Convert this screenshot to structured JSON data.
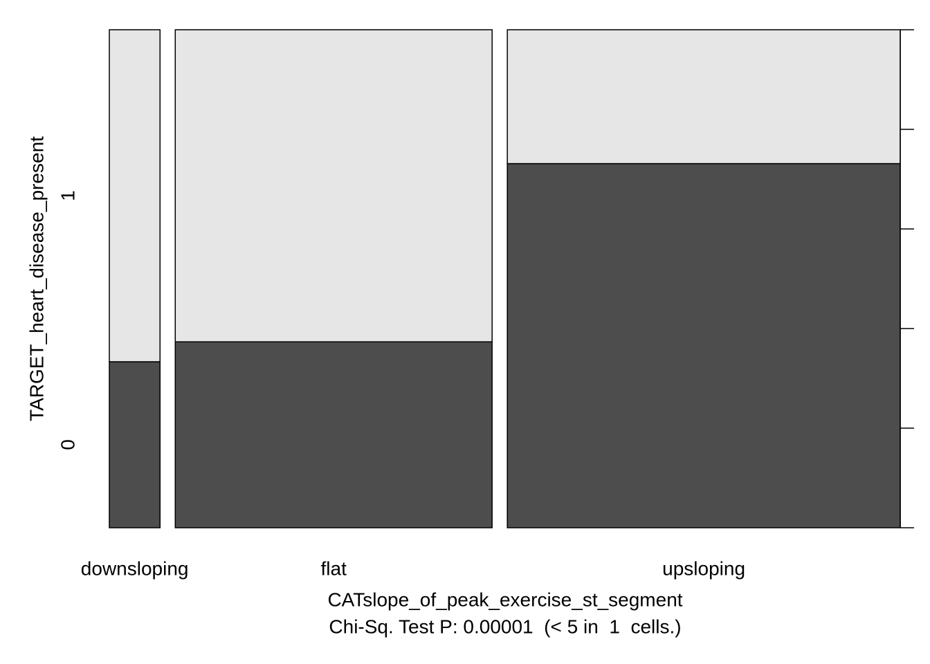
{
  "chart_data": {
    "type": "spineplot",
    "xlabel": "CATslope_of_peak_exercise_st_segment",
    "subtitle": "Chi-Sq. Test P: 0.00001  (< 5 in  1  cells.)",
    "ylabel": "TARGET_heart_disease_present",
    "categories": [
      "downsloping",
      "flat",
      "upsloping"
    ],
    "series": [
      {
        "name": "0",
        "color": "#4d4d4d",
        "values": [
          4,
          28,
          68
        ]
      },
      {
        "name": "1",
        "color": "#e6e6e6",
        "values": [
          8,
          47,
          25
        ]
      }
    ],
    "y2lim": [
      0,
      1
    ],
    "y2ticks": [
      0,
      0.2,
      0.4,
      0.6,
      0.8,
      1
    ]
  }
}
